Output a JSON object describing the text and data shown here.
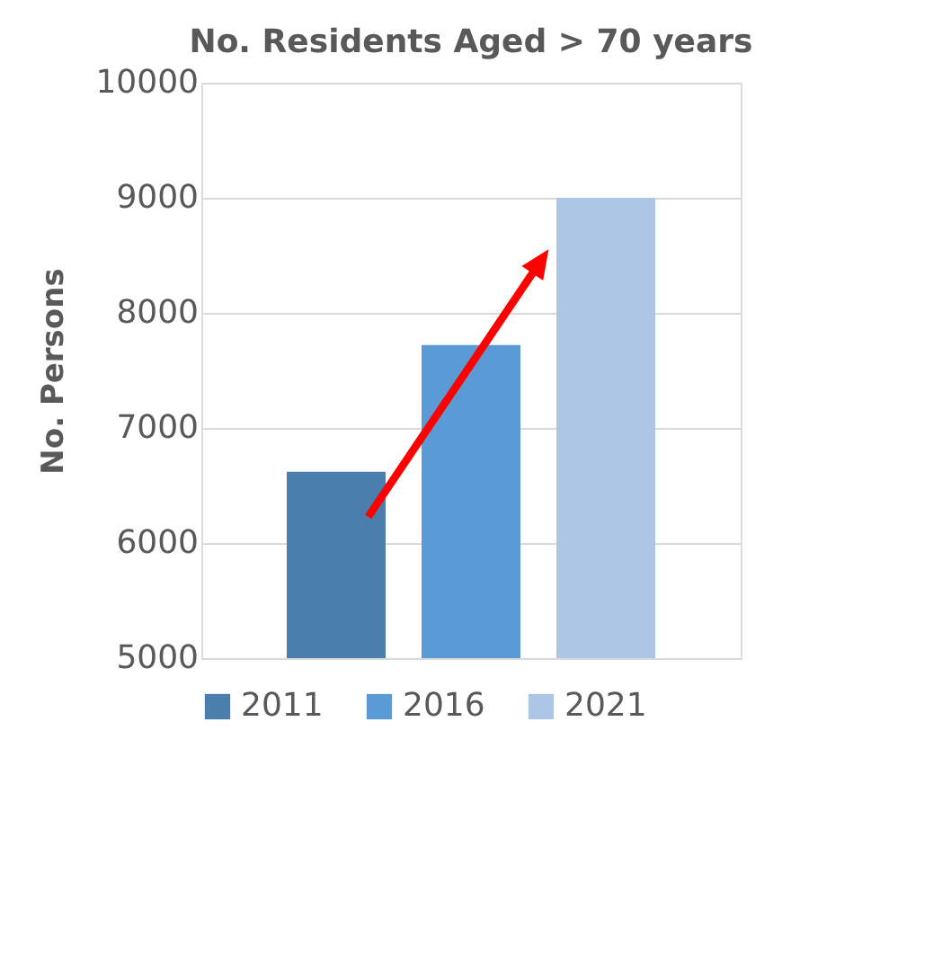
{
  "chart_data": {
    "type": "bar",
    "title": "No. Residents Aged > 70 years",
    "ylabel": "No. Persons",
    "categories": [
      null
    ],
    "series": [
      {
        "name": "2011",
        "color": "#4a7ead",
        "values": [
          6620
        ]
      },
      {
        "name": "2016",
        "color": "#5b9bd5",
        "values": [
          7720
        ]
      },
      {
        "name": "2021",
        "color": "#adc6e6",
        "values": [
          9000
        ]
      }
    ],
    "ylim": [
      5000,
      10000
    ],
    "yticks": [
      {
        "value": 5000,
        "label": "5000"
      },
      {
        "value": 6000,
        "label": "6000"
      },
      {
        "value": 7000,
        "label": "7000"
      },
      {
        "value": 8000,
        "label": "8000"
      },
      {
        "value": 9000,
        "label": "9000"
      },
      {
        "value": 10000,
        "label": "10000"
      }
    ],
    "grid": "y",
    "legend": "bottom",
    "tick_labels": "y"
  }
}
